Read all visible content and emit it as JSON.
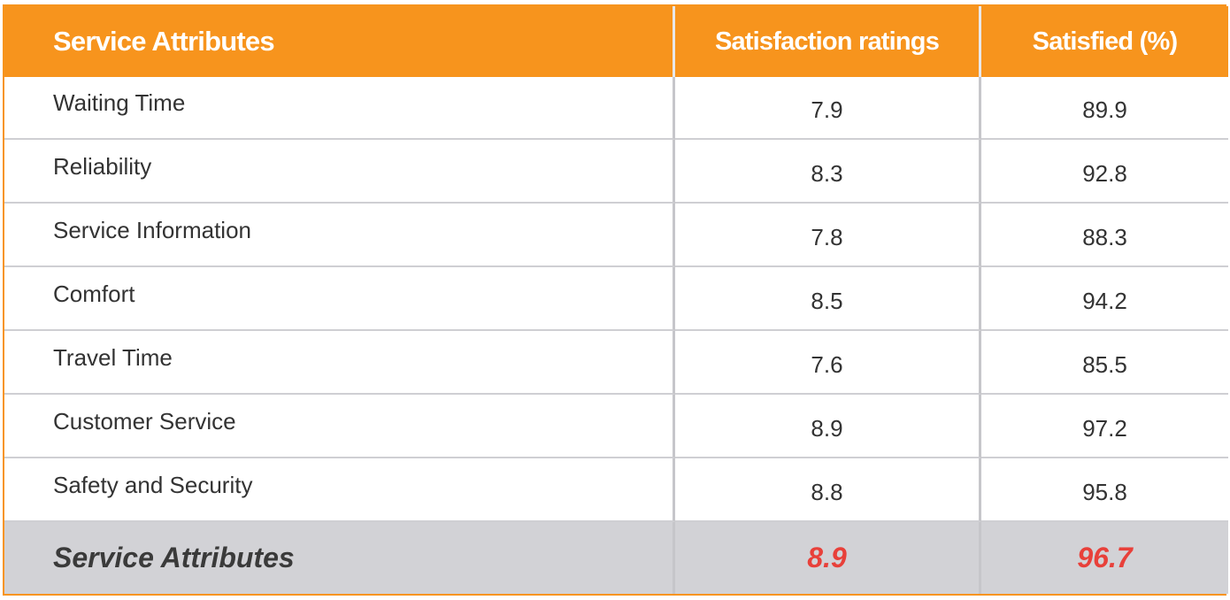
{
  "table": {
    "headers": [
      "Service Attributes",
      "Satisfaction ratings",
      "Satisfied (%)"
    ],
    "rows": [
      {
        "attribute": "Waiting Time",
        "rating": "7.9",
        "satisfied": "89.9"
      },
      {
        "attribute": "Reliability",
        "rating": "8.3",
        "satisfied": "92.8"
      },
      {
        "attribute": "Service Information",
        "rating": "7.8",
        "satisfied": "88.3"
      },
      {
        "attribute": "Comfort",
        "rating": "8.5",
        "satisfied": "94.2"
      },
      {
        "attribute": "Travel Time",
        "rating": "7.6",
        "satisfied": "85.5"
      },
      {
        "attribute": "Customer Service",
        "rating": "8.9",
        "satisfied": "97.2"
      },
      {
        "attribute": "Safety and Security",
        "rating": "8.8",
        "satisfied": "95.8"
      }
    ],
    "total": {
      "attribute": "Service Attributes",
      "rating": "8.9",
      "satisfied": "96.7"
    }
  },
  "colors": {
    "header_bg": "#f7941d",
    "header_text": "#ffffff",
    "total_bg": "#d2d2d6",
    "total_value_text": "#e8403a",
    "body_text": "#333333"
  }
}
